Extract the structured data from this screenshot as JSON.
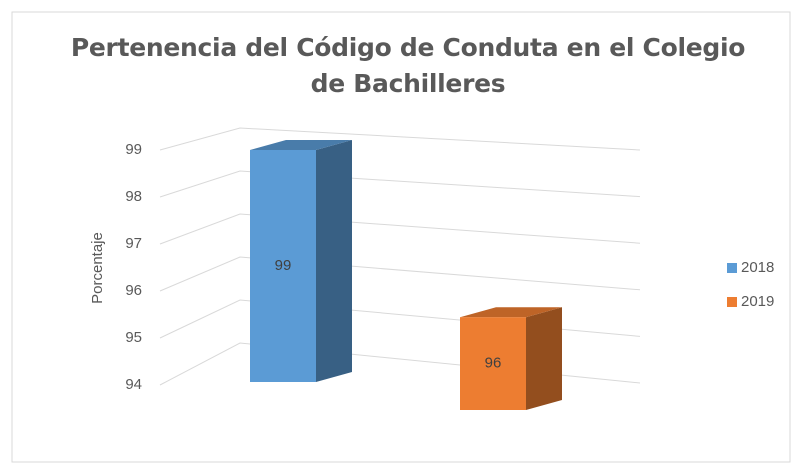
{
  "chart_data": {
    "type": "bar3d",
    "title": "Pertenencia del Código de Conduta en el Colegio de Bachilleres",
    "y_label": "Porcentaje",
    "categories": [
      null
    ],
    "series": [
      {
        "name": "2018",
        "color": "#5b9bd5",
        "values": [
          99
        ]
      },
      {
        "name": "2019",
        "color": "#ed7d31",
        "values": [
          96
        ]
      }
    ],
    "ylim": [
      94,
      99
    ],
    "yticks": [
      94,
      95,
      96,
      97,
      98,
      99
    ],
    "grid": true,
    "legend": "right"
  }
}
